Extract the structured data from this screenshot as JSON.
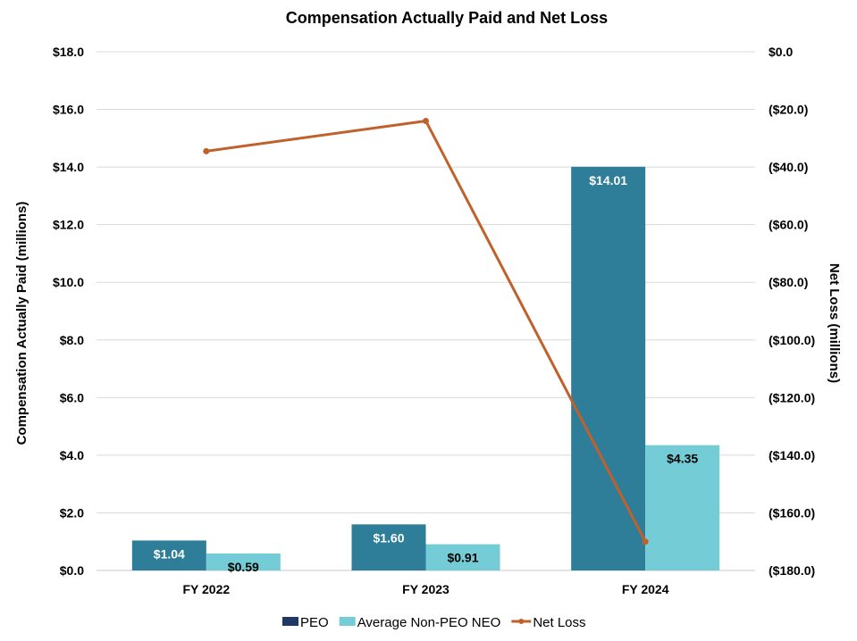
{
  "chart_data": {
    "type": "bar",
    "title": "Compensation Actually Paid and Net Loss",
    "categories": [
      "FY 2022",
      "FY 2023",
      "FY 2024"
    ],
    "series": [
      {
        "name": "PEO",
        "kind": "bar",
        "axis": "left",
        "values": [
          1.04,
          1.6,
          14.01
        ],
        "labels": [
          "$1.04",
          "$1.60",
          "$14.01"
        ],
        "color": "#2E7D99",
        "legend_color": "#1F3864",
        "label_color": "#ffffff"
      },
      {
        "name": "Average Non-PEO NEO",
        "kind": "bar",
        "axis": "left",
        "values": [
          0.59,
          0.91,
          4.35
        ],
        "labels": [
          "$0.59",
          "$0.91",
          "$4.35"
        ],
        "color": "#74CDD6",
        "legend_color": "#74CDD6",
        "label_color": "#000000"
      },
      {
        "name": "Net Loss",
        "kind": "line",
        "axis": "right",
        "values": [
          -34.5,
          -24.0,
          -170.0
        ],
        "color": "#C0612B",
        "legend_color": "#C0612B"
      }
    ],
    "ylabel": "Compensation Actually Paid (millions)",
    "y2label": "Net Loss (millions)",
    "ylim": [
      0,
      18
    ],
    "y2lim": [
      -180,
      0
    ],
    "yticks": [
      "$0.0",
      "$2.0",
      "$4.0",
      "$6.0",
      "$8.0",
      "$10.0",
      "$12.0",
      "$14.0",
      "$16.0",
      "$18.0"
    ],
    "y2ticks": [
      "($180.0)",
      "($160.0)",
      "($140.0)",
      "($120.0)",
      "($100.0)",
      "($80.0)",
      "($60.0)",
      "($40.0)",
      "($20.0)",
      "$0.0"
    ],
    "grid": true,
    "legend_position": "bottom"
  }
}
